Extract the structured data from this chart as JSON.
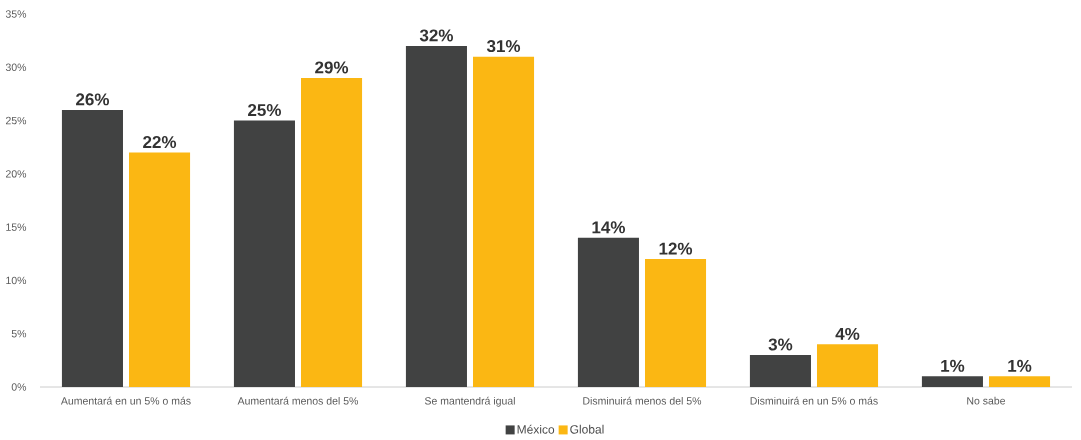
{
  "chart_data": {
    "type": "bar",
    "categories": [
      "Aumentará en un 5% o más",
      "Aumentará menos del 5%",
      "Se mantendrá igual",
      "Disminuirá menos del 5%",
      "Disminuirá en un 5% o más",
      "No sabe"
    ],
    "series": [
      {
        "name": "México",
        "color": "#414242",
        "values": [
          26,
          25,
          32,
          14,
          3,
          1
        ],
        "value_labels": [
          "26%",
          "25%",
          "32%",
          "14%",
          "3%",
          "1%"
        ]
      },
      {
        "name": "Global",
        "color": "#fbb713",
        "values": [
          22,
          29,
          31,
          12,
          4,
          1
        ],
        "value_labels": [
          "22%",
          "29%",
          "31%",
          "12%",
          "4%",
          "1%"
        ]
      }
    ],
    "ylim": [
      0,
      35
    ],
    "yticks": [
      {
        "value": 0,
        "label": "0%"
      },
      {
        "value": 5,
        "label": "5%"
      },
      {
        "value": 10,
        "label": "10%"
      },
      {
        "value": 15,
        "label": "15%"
      },
      {
        "value": 20,
        "label": "20%"
      },
      {
        "value": 25,
        "label": "25%"
      },
      {
        "value": 30,
        "label": "30%"
      },
      {
        "value": 35,
        "label": "35%"
      }
    ],
    "grid": false,
    "legend": "bottom"
  }
}
